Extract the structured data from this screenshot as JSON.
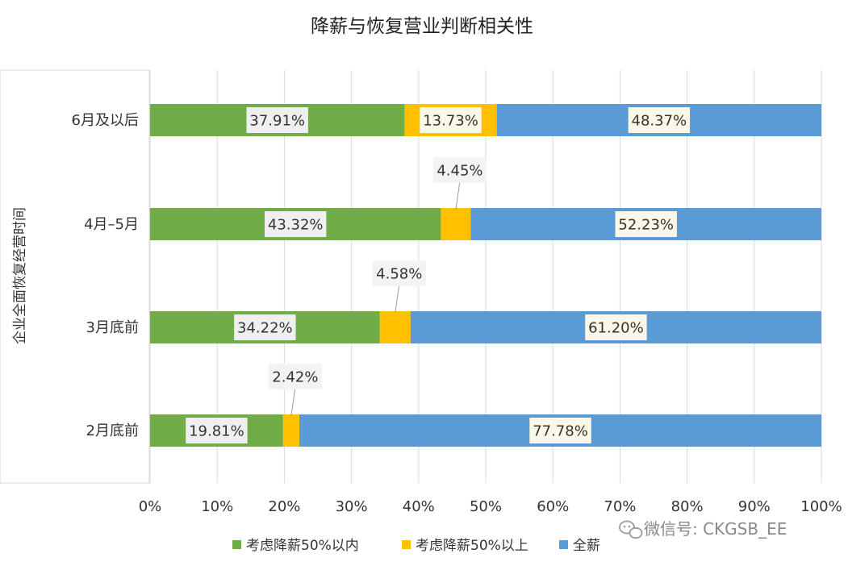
{
  "chart_data": {
    "type": "bar",
    "orientation": "horizontal",
    "stacked": true,
    "title": "降薪与恢复营业判断相关性",
    "ylabel": "企业全面恢复经营时间",
    "xlabel": "",
    "categories": [
      "6月及以后",
      "4月–5月",
      "3月底前",
      "2月底前"
    ],
    "series": [
      {
        "name": "考虑降薪50%以内",
        "color": "#70ad47",
        "values": [
          37.91,
          43.32,
          34.22,
          19.81
        ],
        "labels": [
          "37.91%",
          "43.32%",
          "34.22%",
          "19.81%"
        ]
      },
      {
        "name": "考虑降薪50%以上",
        "color": "#ffc000",
        "values": [
          13.73,
          4.45,
          4.58,
          2.42
        ],
        "labels": [
          "13.73%",
          "4.45%",
          "4.58%",
          "2.42%"
        ]
      },
      {
        "name": "全薪",
        "color": "#5b9bd5",
        "values": [
          48.37,
          52.23,
          61.2,
          77.78
        ],
        "labels": [
          "48.37%",
          "52.23%",
          "61.20%",
          "77.78%"
        ]
      }
    ],
    "xlim": [
      0,
      100
    ],
    "xticks": [
      "0%",
      "10%",
      "20%",
      "30%",
      "40%",
      "50%",
      "60%",
      "70%",
      "80%",
      "90%",
      "100%"
    ],
    "grid": true,
    "legend_position": "bottom"
  },
  "watermark": {
    "text": "微信号: CKGSB_EE",
    "icon": "wechat-icon"
  }
}
